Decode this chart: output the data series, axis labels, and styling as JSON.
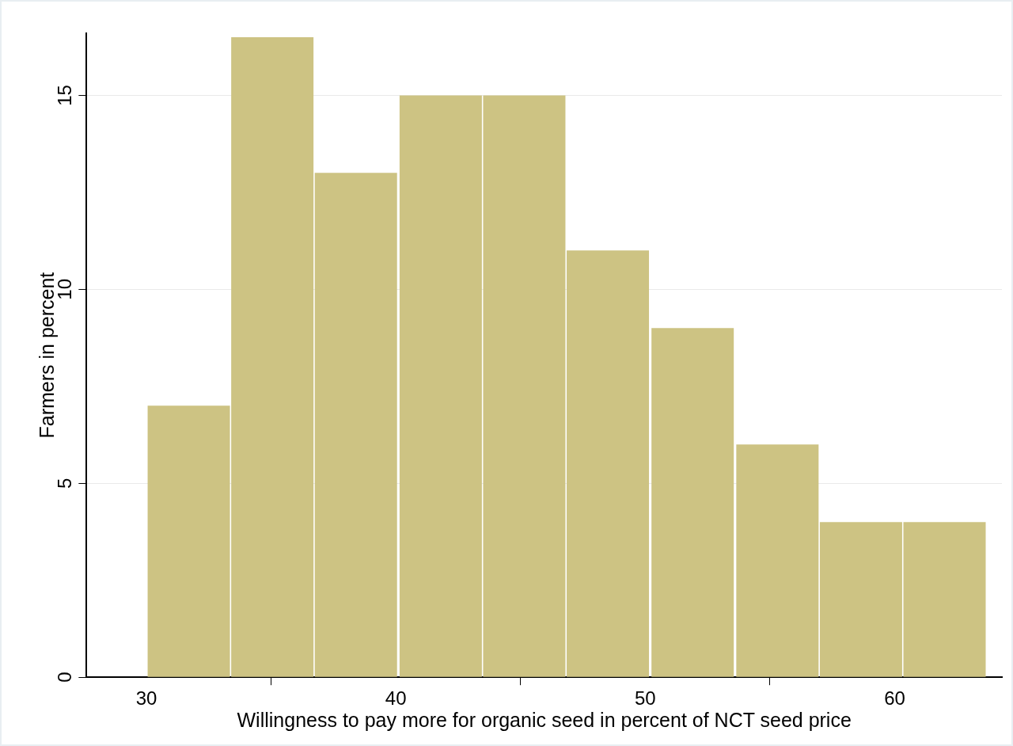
{
  "chart_data": {
    "type": "histogram",
    "xlabel": "Willingness to pay more for organic seed in percent of NCT seed price",
    "ylabel": "Farmers in percent",
    "bins": [
      30,
      33.4,
      36.7,
      40.1,
      43.5,
      46.8,
      50.2,
      53.6,
      57.0,
      60.3,
      63.7
    ],
    "values": [
      7,
      16.5,
      13,
      15,
      15,
      11,
      9,
      6,
      4,
      4
    ],
    "color": "#cdc383",
    "xlim": [
      27.6,
      64.3
    ],
    "xticks": [
      30,
      40,
      50,
      60
    ],
    "ylim": [
      0,
      16.6
    ],
    "yticks": [
      0,
      5,
      10,
      15
    ],
    "grid": "y",
    "legend": false
  }
}
